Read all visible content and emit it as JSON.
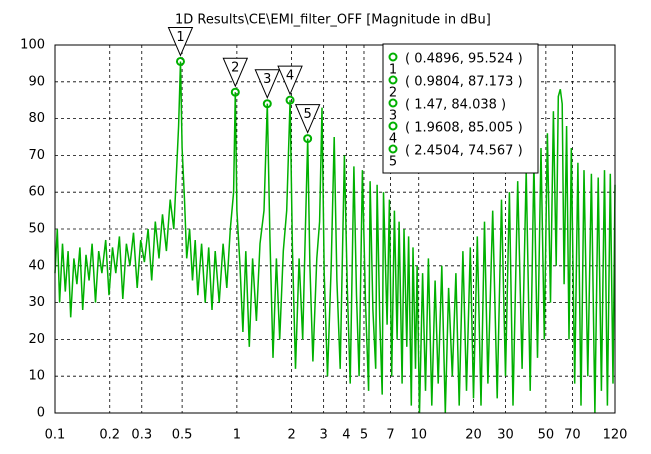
{
  "chart_data": {
    "type": "line",
    "title": "1D Results\\CE\\EMI_filter_OFF [Magnitude in dBu]",
    "xscale": "log",
    "xlim": [
      0.1,
      120
    ],
    "ylim": [
      0,
      100
    ],
    "xticks": [
      0.1,
      0.2,
      0.3,
      0.5,
      1,
      2,
      3,
      4,
      5,
      7,
      10,
      20,
      30,
      50,
      70,
      120
    ],
    "yticks": [
      0,
      10,
      20,
      30,
      40,
      50,
      60,
      70,
      80,
      90,
      100
    ],
    "grid": true,
    "series": [
      {
        "color": "#00b000",
        "x": [
          0.1,
          0.103,
          0.106,
          0.11,
          0.114,
          0.118,
          0.122,
          0.127,
          0.132,
          0.137,
          0.142,
          0.148,
          0.154,
          0.16,
          0.167,
          0.174,
          0.181,
          0.19,
          0.198,
          0.207,
          0.216,
          0.226,
          0.236,
          0.247,
          0.258,
          0.27,
          0.283,
          0.296,
          0.31,
          0.325,
          0.34,
          0.356,
          0.373,
          0.39,
          0.41,
          0.43,
          0.45,
          0.465,
          0.478,
          0.4896,
          0.5,
          0.515,
          0.53,
          0.55,
          0.57,
          0.59,
          0.61,
          0.64,
          0.67,
          0.7,
          0.73,
          0.76,
          0.8,
          0.84,
          0.88,
          0.92,
          0.96,
          0.9804,
          1.0,
          1.04,
          1.08,
          1.12,
          1.17,
          1.22,
          1.28,
          1.34,
          1.41,
          1.47,
          1.52,
          1.58,
          1.65,
          1.72,
          1.8,
          1.88,
          1.9608,
          2.02,
          2.1,
          2.2,
          2.3,
          2.38,
          2.4504,
          2.52,
          2.62,
          2.75,
          2.85,
          2.94,
          3.02,
          3.15,
          3.3,
          3.43,
          3.55,
          3.7,
          3.9,
          4.05,
          4.2,
          4.4,
          4.55,
          4.7,
          4.9,
          5.1,
          5.3,
          5.4,
          5.6,
          5.8,
          5.9,
          6.1,
          6.3,
          6.4,
          6.7,
          6.9,
          7.1,
          7.35,
          7.6,
          7.8,
          8.1,
          8.3,
          8.6,
          8.8,
          9.1,
          9.3,
          9.6,
          9.8,
          10.1,
          10.5,
          10.9,
          11.3,
          11.8,
          12.3,
          12.8,
          13.4,
          14,
          14.6,
          15.3,
          16,
          16.7,
          17.5,
          18.3,
          19.2,
          20,
          21,
          22,
          23,
          24,
          25.5,
          27,
          28.5,
          30,
          31.5,
          33,
          35,
          37,
          39,
          41,
          43,
          45,
          47,
          49,
          51,
          53,
          55,
          57,
          58.5,
          60,
          61.5,
          63,
          65,
          67,
          69,
          72,
          75,
          78,
          81,
          85,
          89,
          93,
          97,
          101,
          105,
          109,
          113,
          117,
          120
        ],
        "values": [
          38,
          50,
          30,
          46,
          33,
          44,
          26,
          42,
          35,
          45,
          28,
          43,
          36,
          46,
          30,
          44,
          38,
          47,
          32,
          45,
          38,
          48,
          31,
          46,
          40,
          49,
          34,
          47,
          41,
          50,
          36,
          52,
          42,
          54,
          44,
          58,
          50,
          65,
          78,
          95.524,
          72,
          58,
          42,
          50,
          36,
          47,
          32,
          46,
          30,
          45,
          28,
          44,
          30,
          46,
          34,
          50,
          60,
          87.173,
          55,
          40,
          22,
          44,
          18,
          42,
          25,
          46,
          55,
          84.038,
          48,
          15,
          42,
          20,
          44,
          55,
          85.005,
          45,
          12,
          42,
          20,
          50,
          74.567,
          40,
          14,
          42,
          52,
          83,
          38,
          10,
          40,
          75,
          36,
          12,
          70,
          34,
          8,
          67,
          32,
          10,
          66,
          30,
          6,
          63,
          28,
          12,
          62,
          26,
          5,
          60,
          24,
          58,
          10,
          55,
          20,
          52,
          8,
          50,
          18,
          48,
          2,
          45,
          12,
          40,
          0,
          38,
          6,
          42,
          2,
          36,
          8,
          40,
          0,
          34,
          10,
          38,
          2,
          44,
          6,
          45,
          4,
          48,
          2,
          52,
          8,
          55,
          4,
          58,
          10,
          60,
          2,
          63,
          12,
          66,
          6,
          68,
          15,
          72,
          20,
          76,
          30,
          82,
          40,
          86,
          88,
          84,
          35,
          78,
          20,
          72,
          8,
          68,
          2,
          66,
          10,
          65,
          0,
          64,
          6,
          66,
          2,
          65,
          8,
          62
        ]
      }
    ],
    "markers": [
      {
        "name": "1",
        "x": 0.4896,
        "value": 95.524,
        "label": "( 0.4896, 95.524 )"
      },
      {
        "name": "2",
        "x": 0.9804,
        "value": 87.173,
        "label": "( 0.9804, 87.173 )"
      },
      {
        "name": "3",
        "x": 1.47,
        "value": 84.038,
        "label": "( 1.47, 84.038 )"
      },
      {
        "name": "4",
        "x": 1.9608,
        "value": 85.005,
        "label": "( 1.9608, 85.005 )"
      },
      {
        "name": "5",
        "x": 2.4504,
        "value": 74.567,
        "label": "( 2.4504, 74.567 )"
      }
    ]
  }
}
